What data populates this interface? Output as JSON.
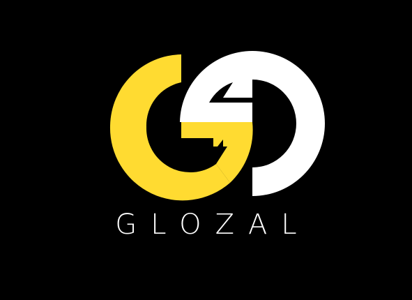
{
  "brand": {
    "name": "GLOZAL",
    "colors": {
      "background": "#000000",
      "primary": "#FFDB31",
      "secondary": "#FFFFFF"
    }
  },
  "icons": {
    "logo_mark": "interlocking-g-o-monogram-icon"
  }
}
